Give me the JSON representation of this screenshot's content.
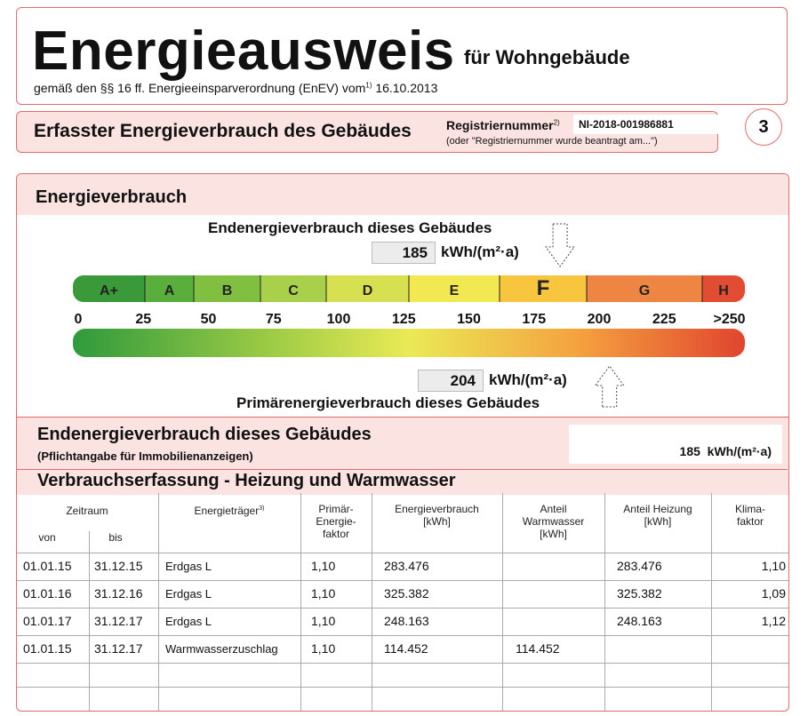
{
  "header": {
    "title": "Energieausweis",
    "subtitle": "für Wohngebäude",
    "law": "gemäß den §§ 16 ff. Energieeinsparverordnung (EnEV) vom",
    "footnote": "1)",
    "date": "16.10.2013"
  },
  "section": {
    "title": "Erfasster Energieverbrauch des Gebäudes",
    "reg_label": "Registriernummer",
    "reg_footnote": "2)",
    "reg_number": "NI-2018-001986881",
    "reg_note": "(oder \"Registriernummer wurde beantragt am...\")",
    "page": "3"
  },
  "energy": {
    "heading": "Energieverbrauch",
    "end_label": "Endenergieverbrauch dieses Gebäudes",
    "end_value": 185,
    "unit": "kWh/(m²·a)",
    "primary_label": "Primärenergieverbrauch dieses Gebäudes",
    "primary_value": 204,
    "classes": [
      "A+",
      "A",
      "B",
      "C",
      "D",
      "E",
      "F",
      "G",
      "H"
    ],
    "ticks": [
      0,
      25,
      50,
      75,
      100,
      125,
      150,
      175,
      200,
      225,
      {
        "value": 250,
        "label": ">250"
      }
    ]
  },
  "summary": {
    "title": "Endenergieverbrauch dieses Gebäudes",
    "note": "(Pflichtangabe für Immobilienanzeigen)",
    "value": 185
  },
  "table": {
    "title": "Verbrauchserfassung - Heizung und Warmwasser",
    "header": {
      "period": "Zeitraum",
      "from": "von",
      "to": "bis",
      "carrier": "Energieträger",
      "carrier_note": "3)",
      "primary_factor": [
        "Primär-",
        "Energie-",
        "faktor"
      ],
      "consumption": [
        "Energieverbrauch",
        "[kWh]"
      ],
      "water": [
        "Anteil",
        "Warmwasser",
        "[kWh]"
      ],
      "heating": [
        "Anteil Heizung",
        "[kWh]"
      ],
      "climate": [
        "Klima-",
        "faktor"
      ]
    },
    "rows": [
      [
        "01.01.15",
        "31.12.15",
        "Erdgas L",
        "1,10",
        "283.476",
        null,
        "283.476",
        "1,10"
      ],
      [
        "01.01.16",
        "31.12.16",
        "Erdgas L",
        "1,10",
        "325.382",
        null,
        "325.382",
        "1,09"
      ],
      [
        "01.01.17",
        "31.12.17",
        "Erdgas L",
        "1,10",
        "248.163",
        null,
        "248.163",
        "1,12"
      ],
      [
        "01.01.15",
        "31.12.17",
        "Warmwasserzuschlag",
        "1,10",
        "114.452",
        "114.452",
        null,
        null
      ]
    ]
  }
}
